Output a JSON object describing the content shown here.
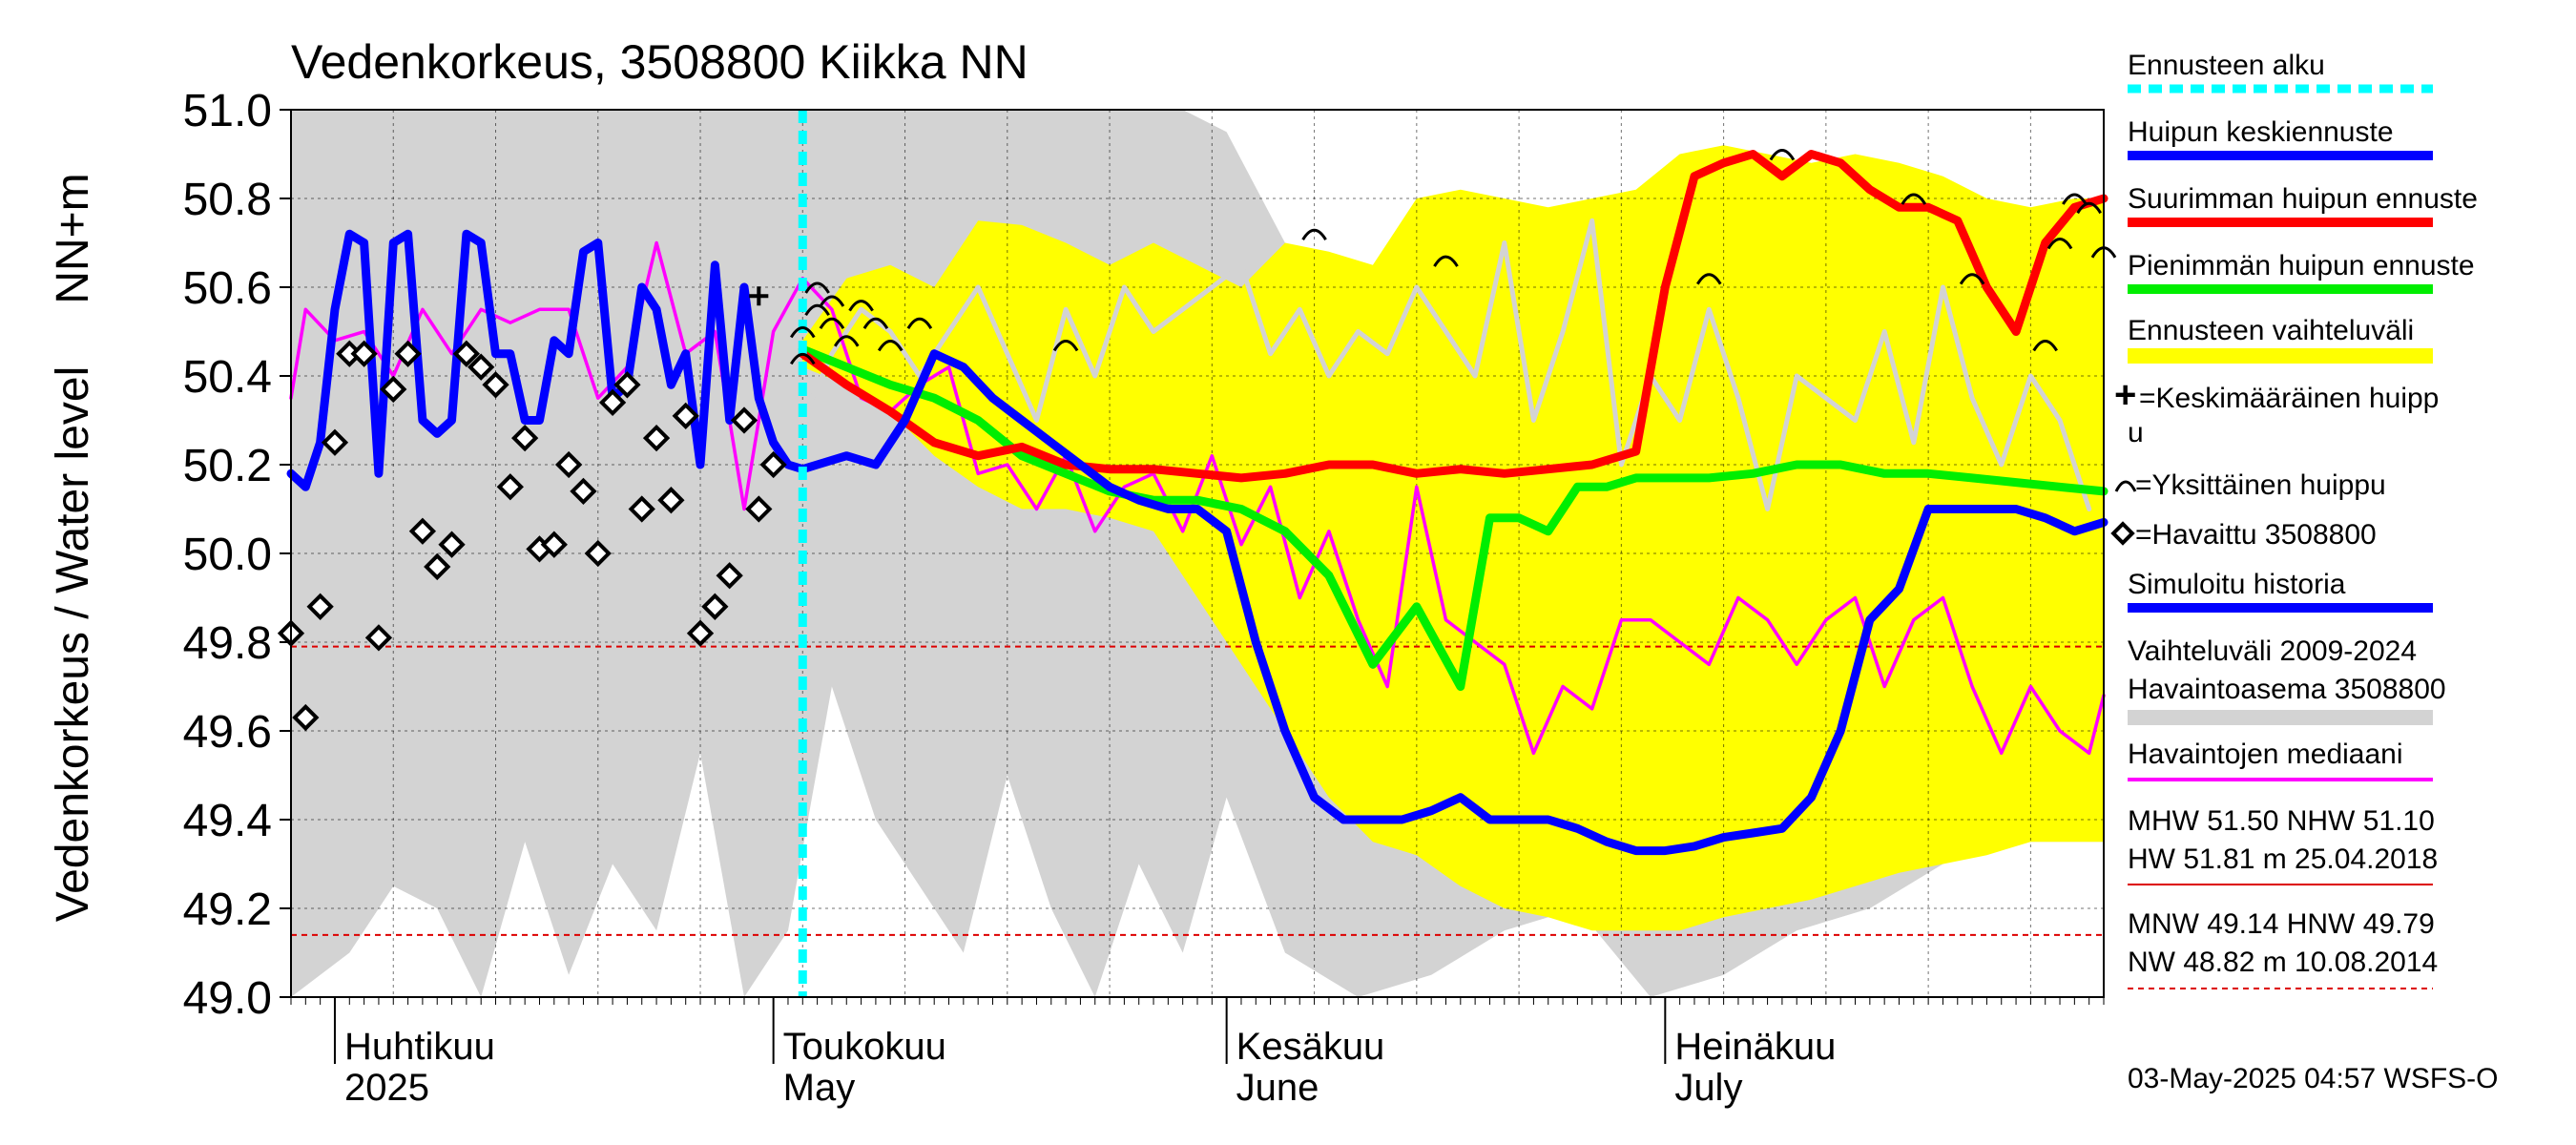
{
  "chart_data": {
    "type": "line",
    "title": "Vedenkorkeus, 3508800 Kiikka NN",
    "ylabel_top": "NN+m",
    "ylabel": "Vedenkorkeus / Water level",
    "ylim": [
      49.0,
      51.0
    ],
    "yticks": [
      "49.0",
      "49.2",
      "49.4",
      "49.6",
      "49.8",
      "50.0",
      "50.2",
      "50.4",
      "50.6",
      "50.8",
      "51.0"
    ],
    "xlim": [
      "2025-03-29",
      "2025-07-31"
    ],
    "months": [
      {
        "date": "2025-04-01",
        "fi": "Huhtikuu",
        "en": "2025"
      },
      {
        "date": "2025-05-01",
        "fi": "Toukokuu",
        "en": "May"
      },
      {
        "date": "2025-06-01",
        "fi": "Kesäkuu",
        "en": "June"
      },
      {
        "date": "2025-07-01",
        "fi": "Heinäkuu",
        "en": "July"
      }
    ],
    "forecast_start": "2025-05-03",
    "reference_lines": [
      49.79,
      49.14
    ],
    "legend": {
      "forecast_start": "Ennusteen alku",
      "mean_peak": "Huipun keskiennuste",
      "max_peak": "Suurimman huipun ennuste",
      "min_peak": "Pienimmän huipun ennuste",
      "forecast_range": "Ennusteen vaihteluväli",
      "avg_peak_line1": "=Keskimääräinen huipp",
      "avg_peak_line2": "u",
      "single_peak": "=Yksittäinen huippu",
      "observed": "=Havaittu 3508800",
      "simulated": "Simuloitu historia",
      "range_line1": "Vaihteluväli 2009-2024",
      "range_line2": " Havaintoasema 3508800",
      "median": "Havaintojen mediaani"
    },
    "stats": {
      "high_line1": "MHW  51.50 NHW  51.10",
      "high_line2": "HW  51.81 m 25.04.2018",
      "low_line1": "MNW  49.14 HNW  49.79",
      "low_line2": "NW  48.82 m 10.08.2014"
    },
    "footer": "03-May-2025 04:57 WSFS-O",
    "colors": {
      "simulated": "#0000ff",
      "max_peak": "#ff0000",
      "min_peak": "#00ee00",
      "forecast_range": "#ffff00",
      "history_range": "#d3d3d3",
      "median": "#ff00ff",
      "forecast_start": "#00ffff",
      "reference": "#dd0000"
    },
    "history_range": {
      "x": [
        "2025-03-29",
        "2025-04-02",
        "2025-04-05",
        "2025-04-08",
        "2025-04-11",
        "2025-04-14",
        "2025-04-17",
        "2025-04-20",
        "2025-04-23",
        "2025-04-26",
        "2025-04-29",
        "2025-05-02",
        "2025-05-05",
        "2025-05-08",
        "2025-05-11",
        "2025-05-14",
        "2025-05-17",
        "2025-05-20",
        "2025-05-23",
        "2025-05-26",
        "2025-05-29",
        "2025-06-01",
        "2025-06-05",
        "2025-06-10",
        "2025-06-15",
        "2025-06-20",
        "2025-06-25",
        "2025-06-30",
        "2025-07-05",
        "2025-07-10",
        "2025-07-15",
        "2025-07-20",
        "2025-07-25",
        "2025-07-31"
      ],
      "upper": [
        51.0,
        51.0,
        51.0,
        51.0,
        51.0,
        51.0,
        51.0,
        51.0,
        51.0,
        51.0,
        51.0,
        51.0,
        51.0,
        51.0,
        51.0,
        51.0,
        51.0,
        51.0,
        51.0,
        51.0,
        51.0,
        50.95,
        50.7,
        50.6,
        50.5,
        50.5,
        50.5,
        50.5,
        50.5,
        50.5,
        50.5,
        50.6,
        50.5,
        50.5
      ],
      "lower": [
        49.0,
        49.1,
        49.25,
        49.2,
        49.0,
        49.35,
        49.05,
        49.3,
        49.15,
        49.55,
        49.0,
        49.15,
        49.7,
        49.4,
        49.25,
        49.1,
        49.5,
        49.2,
        49.0,
        49.3,
        49.1,
        49.45,
        49.1,
        49.0,
        49.05,
        49.15,
        49.2,
        49.0,
        49.05,
        49.15,
        49.2,
        49.3,
        49.35,
        49.35
      ]
    },
    "forecast_range": {
      "x": [
        "2025-05-03",
        "2025-05-06",
        "2025-05-09",
        "2025-05-12",
        "2025-05-15",
        "2025-05-18",
        "2025-05-21",
        "2025-05-24",
        "2025-05-27",
        "2025-05-30",
        "2025-06-02",
        "2025-06-05",
        "2025-06-08",
        "2025-06-11",
        "2025-06-14",
        "2025-06-17",
        "2025-06-20",
        "2025-06-23",
        "2025-06-26",
        "2025-06-29",
        "2025-07-02",
        "2025-07-05",
        "2025-07-08",
        "2025-07-11",
        "2025-07-14",
        "2025-07-17",
        "2025-07-20",
        "2025-07-23",
        "2025-07-26",
        "2025-07-29",
        "2025-07-31"
      ],
      "upper": [
        50.48,
        50.62,
        50.65,
        50.6,
        50.75,
        50.74,
        50.7,
        50.65,
        50.7,
        50.65,
        50.6,
        50.7,
        50.68,
        50.65,
        50.8,
        50.82,
        50.8,
        50.78,
        50.8,
        50.82,
        50.9,
        50.92,
        50.9,
        50.88,
        50.9,
        50.88,
        50.85,
        50.8,
        50.78,
        50.8,
        50.8
      ],
      "lower": [
        50.42,
        50.38,
        50.32,
        50.22,
        50.15,
        50.1,
        50.1,
        50.08,
        50.05,
        49.9,
        49.75,
        49.6,
        49.45,
        49.35,
        49.32,
        49.25,
        49.2,
        49.18,
        49.15,
        49.15,
        49.15,
        49.18,
        49.2,
        49.22,
        49.25,
        49.28,
        49.3,
        49.32,
        49.35,
        49.35,
        49.35
      ]
    },
    "series": [
      {
        "key": "simulated",
        "x": [
          "2025-03-29",
          "2025-03-30",
          "2025-03-31",
          "2025-04-01",
          "2025-04-02",
          "2025-04-03",
          "2025-04-04",
          "2025-04-05",
          "2025-04-06",
          "2025-04-07",
          "2025-04-08",
          "2025-04-09",
          "2025-04-10",
          "2025-04-11",
          "2025-04-12",
          "2025-04-13",
          "2025-04-14",
          "2025-04-15",
          "2025-04-16",
          "2025-04-17",
          "2025-04-18",
          "2025-04-19",
          "2025-04-20",
          "2025-04-21",
          "2025-04-22",
          "2025-04-23",
          "2025-04-24",
          "2025-04-25",
          "2025-04-26",
          "2025-04-27",
          "2025-04-28",
          "2025-04-29",
          "2025-04-30",
          "2025-05-01",
          "2025-05-02",
          "2025-05-03",
          "2025-05-04",
          "2025-05-06",
          "2025-05-08",
          "2025-05-10",
          "2025-05-12",
          "2025-05-14",
          "2025-05-16",
          "2025-05-18",
          "2025-05-20",
          "2025-05-22",
          "2025-05-24",
          "2025-05-26",
          "2025-05-28",
          "2025-05-30",
          "2025-06-01",
          "2025-06-03",
          "2025-06-05",
          "2025-06-07",
          "2025-06-09",
          "2025-06-11",
          "2025-06-13",
          "2025-06-15",
          "2025-06-17",
          "2025-06-19",
          "2025-06-21",
          "2025-06-23",
          "2025-06-25",
          "2025-06-27",
          "2025-06-29",
          "2025-07-01",
          "2025-07-03",
          "2025-07-05",
          "2025-07-07",
          "2025-07-09",
          "2025-07-11",
          "2025-07-13",
          "2025-07-15",
          "2025-07-17",
          "2025-07-19",
          "2025-07-21",
          "2025-07-23",
          "2025-07-25",
          "2025-07-27",
          "2025-07-29",
          "2025-07-31"
        ],
        "values": [
          50.18,
          50.15,
          50.25,
          50.55,
          50.72,
          50.7,
          50.18,
          50.7,
          50.72,
          50.3,
          50.27,
          50.3,
          50.72,
          50.7,
          50.45,
          50.45,
          50.3,
          50.3,
          50.48,
          50.45,
          50.68,
          50.7,
          50.35,
          50.38,
          50.6,
          50.55,
          50.38,
          50.45,
          50.2,
          50.65,
          50.3,
          50.6,
          50.35,
          50.25,
          50.2,
          50.19,
          50.2,
          50.22,
          50.2,
          50.3,
          50.45,
          50.42,
          50.35,
          50.3,
          50.25,
          50.2,
          50.15,
          50.12,
          50.1,
          50.1,
          50.05,
          49.8,
          49.6,
          49.45,
          49.4,
          49.4,
          49.4,
          49.42,
          49.45,
          49.4,
          49.4,
          49.4,
          49.38,
          49.35,
          49.33,
          49.33,
          49.34,
          49.36,
          49.37,
          49.38,
          49.45,
          49.6,
          49.85,
          49.92,
          50.1,
          50.1,
          50.1,
          50.1,
          50.08,
          50.05,
          50.07
        ]
      },
      {
        "key": "median",
        "x": [
          "2025-03-29",
          "2025-03-30",
          "2025-04-01",
          "2025-04-03",
          "2025-04-05",
          "2025-04-07",
          "2025-04-09",
          "2025-04-11",
          "2025-04-13",
          "2025-04-15",
          "2025-04-17",
          "2025-04-19",
          "2025-04-21",
          "2025-04-23",
          "2025-04-25",
          "2025-04-27",
          "2025-04-29",
          "2025-05-01",
          "2025-05-03",
          "2025-05-05",
          "2025-05-07",
          "2025-05-09",
          "2025-05-11",
          "2025-05-13",
          "2025-05-15",
          "2025-05-17",
          "2025-05-19",
          "2025-05-21",
          "2025-05-23",
          "2025-05-25",
          "2025-05-27",
          "2025-05-29",
          "2025-05-31",
          "2025-06-02",
          "2025-06-04",
          "2025-06-06",
          "2025-06-08",
          "2025-06-10",
          "2025-06-12",
          "2025-06-14",
          "2025-06-16",
          "2025-06-18",
          "2025-06-20",
          "2025-06-22",
          "2025-06-24",
          "2025-06-26",
          "2025-06-28",
          "2025-06-30",
          "2025-07-02",
          "2025-07-04",
          "2025-07-06",
          "2025-07-08",
          "2025-07-10",
          "2025-07-12",
          "2025-07-14",
          "2025-07-16",
          "2025-07-18",
          "2025-07-20",
          "2025-07-22",
          "2025-07-24",
          "2025-07-26",
          "2025-07-28",
          "2025-07-30",
          "2025-07-31"
        ],
        "values": [
          50.35,
          50.55,
          50.48,
          50.5,
          50.4,
          50.55,
          50.45,
          50.55,
          50.52,
          50.55,
          50.55,
          50.35,
          50.42,
          50.7,
          50.45,
          50.5,
          50.1,
          50.5,
          50.62,
          50.55,
          50.35,
          50.32,
          50.38,
          50.42,
          50.18,
          50.2,
          50.1,
          50.22,
          50.05,
          50.15,
          50.18,
          50.05,
          50.22,
          50.02,
          50.15,
          49.9,
          50.05,
          49.85,
          49.7,
          50.15,
          49.85,
          49.8,
          49.75,
          49.55,
          49.7,
          49.65,
          49.85,
          49.85,
          49.8,
          49.75,
          49.9,
          49.85,
          49.75,
          49.85,
          49.9,
          49.7,
          49.85,
          49.9,
          49.7,
          49.55,
          49.7,
          49.6,
          49.55,
          49.68
        ]
      },
      {
        "key": "max_peak",
        "x": [
          "2025-05-03",
          "2025-05-06",
          "2025-05-09",
          "2025-05-12",
          "2025-05-15",
          "2025-05-18",
          "2025-05-21",
          "2025-05-24",
          "2025-05-27",
          "2025-05-30",
          "2025-06-02",
          "2025-06-05",
          "2025-06-08",
          "2025-06-11",
          "2025-06-14",
          "2025-06-17",
          "2025-06-20",
          "2025-06-23",
          "2025-06-26",
          "2025-06-29",
          "2025-07-01",
          "2025-07-03",
          "2025-07-05",
          "2025-07-07",
          "2025-07-09",
          "2025-07-11",
          "2025-07-13",
          "2025-07-15",
          "2025-07-17",
          "2025-07-19",
          "2025-07-21",
          "2025-07-23",
          "2025-07-25",
          "2025-07-27",
          "2025-07-29",
          "2025-07-31"
        ],
        "values": [
          50.45,
          50.38,
          50.32,
          50.25,
          50.22,
          50.24,
          50.2,
          50.19,
          50.19,
          50.18,
          50.17,
          50.18,
          50.2,
          50.2,
          50.18,
          50.19,
          50.18,
          50.19,
          50.2,
          50.23,
          50.6,
          50.85,
          50.88,
          50.9,
          50.85,
          50.9,
          50.88,
          50.82,
          50.78,
          50.78,
          50.75,
          50.6,
          50.5,
          50.7,
          50.78,
          50.8
        ]
      },
      {
        "key": "min_peak",
        "x": [
          "2025-05-03",
          "2025-05-06",
          "2025-05-09",
          "2025-05-12",
          "2025-05-15",
          "2025-05-18",
          "2025-05-21",
          "2025-05-24",
          "2025-05-27",
          "2025-05-30",
          "2025-06-02",
          "2025-06-05",
          "2025-06-08",
          "2025-06-11",
          "2025-06-14",
          "2025-06-17",
          "2025-06-19",
          "2025-06-21",
          "2025-06-23",
          "2025-06-25",
          "2025-06-27",
          "2025-06-29",
          "2025-07-01",
          "2025-07-04",
          "2025-07-07",
          "2025-07-10",
          "2025-07-13",
          "2025-07-16",
          "2025-07-19",
          "2025-07-22",
          "2025-07-25",
          "2025-07-28",
          "2025-07-31"
        ],
        "values": [
          50.46,
          50.42,
          50.38,
          50.35,
          50.3,
          50.22,
          50.18,
          50.14,
          50.12,
          50.12,
          50.1,
          50.05,
          49.95,
          49.75,
          49.88,
          49.7,
          50.08,
          50.08,
          50.05,
          50.15,
          50.15,
          50.17,
          50.17,
          50.17,
          50.18,
          50.2,
          50.2,
          50.18,
          50.18,
          50.17,
          50.16,
          50.15,
          50.14
        ]
      }
    ],
    "history_median_grey": {
      "x": [
        "2025-05-03",
        "2025-05-05",
        "2025-05-07",
        "2025-05-09",
        "2025-05-11",
        "2025-05-13",
        "2025-05-15",
        "2025-05-17",
        "2025-05-19",
        "2025-05-21",
        "2025-05-23",
        "2025-05-25",
        "2025-05-27",
        "2025-05-29",
        "2025-05-31",
        "2025-06-02",
        "2025-06-04",
        "2025-06-06",
        "2025-06-08",
        "2025-06-10",
        "2025-06-12",
        "2025-06-14",
        "2025-06-16",
        "2025-06-18",
        "2025-06-20",
        "2025-06-22",
        "2025-06-24",
        "2025-06-26",
        "2025-06-28",
        "2025-06-30",
        "2025-07-02",
        "2025-07-04",
        "2025-07-06",
        "2025-07-08",
        "2025-07-10",
        "2025-07-12",
        "2025-07-14",
        "2025-07-16",
        "2025-07-18",
        "2025-07-20",
        "2025-07-22",
        "2025-07-24",
        "2025-07-26",
        "2025-07-28",
        "2025-07-30"
      ],
      "values": [
        50.3,
        50.45,
        50.55,
        50.5,
        50.4,
        50.5,
        50.6,
        50.45,
        50.3,
        50.55,
        50.4,
        50.6,
        50.5,
        50.55,
        50.6,
        50.65,
        50.45,
        50.55,
        50.4,
        50.5,
        50.45,
        50.6,
        50.5,
        50.4,
        50.7,
        50.3,
        50.5,
        50.75,
        50.2,
        50.4,
        50.3,
        50.55,
        50.35,
        50.1,
        50.4,
        50.35,
        50.3,
        50.5,
        50.25,
        50.6,
        50.35,
        50.2,
        50.4,
        50.3,
        50.1
      ]
    },
    "observed": {
      "x": [
        "2025-03-29",
        "2025-03-30",
        "2025-03-31",
        "2025-04-01",
        "2025-04-02",
        "2025-04-03",
        "2025-04-04",
        "2025-04-05",
        "2025-04-06",
        "2025-04-07",
        "2025-04-08",
        "2025-04-09",
        "2025-04-10",
        "2025-04-11",
        "2025-04-12",
        "2025-04-13",
        "2025-04-14",
        "2025-04-15",
        "2025-04-16",
        "2025-04-17",
        "2025-04-18",
        "2025-04-19",
        "2025-04-20",
        "2025-04-21",
        "2025-04-22",
        "2025-04-23",
        "2025-04-24",
        "2025-04-25",
        "2025-04-26",
        "2025-04-27",
        "2025-04-28",
        "2025-04-29",
        "2025-04-30",
        "2025-05-01"
      ],
      "values": [
        49.82,
        49.63,
        49.88,
        50.25,
        50.45,
        50.45,
        49.81,
        50.37,
        50.45,
        50.05,
        49.97,
        50.02,
        50.45,
        50.42,
        50.38,
        50.15,
        50.26,
        50.01,
        50.02,
        50.2,
        50.14,
        50.0,
        50.34,
        50.38,
        50.1,
        50.26,
        50.12,
        50.31,
        49.82,
        49.88,
        49.95,
        50.3,
        50.1,
        50.2
      ]
    },
    "avg_peak": {
      "x": [
        "2025-04-30"
      ],
      "values": [
        50.58
      ]
    },
    "single_peaks": {
      "x": [
        "2025-05-03",
        "2025-05-03",
        "2025-05-04",
        "2025-05-04",
        "2025-05-05",
        "2025-05-05",
        "2025-05-06",
        "2025-05-07",
        "2025-05-08",
        "2025-05-09",
        "2025-05-11",
        "2025-05-21",
        "2025-06-07",
        "2025-06-16",
        "2025-07-04",
        "2025-07-09",
        "2025-07-18",
        "2025-07-22",
        "2025-07-27",
        "2025-07-28",
        "2025-07-29",
        "2025-07-30",
        "2025-07-31"
      ],
      "values": [
        50.44,
        50.5,
        50.55,
        50.6,
        50.52,
        50.57,
        50.48,
        50.56,
        50.52,
        50.47,
        50.52,
        50.47,
        50.72,
        50.66,
        50.62,
        50.9,
        50.8,
        50.62,
        50.47,
        50.7,
        50.8,
        50.78,
        50.68
      ]
    }
  }
}
